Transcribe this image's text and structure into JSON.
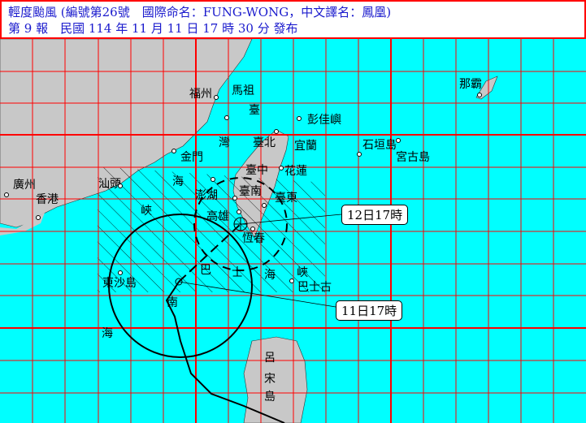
{
  "header": {
    "line1": "輕度颱風 (編號第26號　國際命名：FUNG-WONG，中文譯名：鳳凰)",
    "line2": "第 9 報　民國 114 年 11 月 11 日 17 時 30 分 發布"
  },
  "colors": {
    "sea": "#00ffff",
    "land": "#c8c8c8",
    "grid": "#ff0000",
    "header_text": "#1a1acd"
  },
  "places": [
    "福州",
    "馬祖",
    "那霸",
    "彭佳嶼",
    "臺",
    "灣",
    "臺北",
    "宜蘭",
    "石垣島",
    "宮古島",
    "金門",
    "海",
    "峽",
    "臺中",
    "花蓮",
    "廣州",
    "香港",
    "汕頭",
    "澎湖",
    "臺南",
    "臺東",
    "高雄",
    "恆春",
    "巴",
    "士",
    "海",
    "峽",
    "巴士古",
    "東沙島",
    "南",
    "海",
    "呂",
    "宋",
    "島"
  ],
  "forecast": [
    {
      "label": "11日17時",
      "icon": "typhoon-current-position"
    },
    {
      "label": "12日17時",
      "icon": "typhoon-forecast-position"
    }
  ],
  "legend_icons": [
    "radius-circle",
    "warning-area-hatch",
    "track-line"
  ]
}
